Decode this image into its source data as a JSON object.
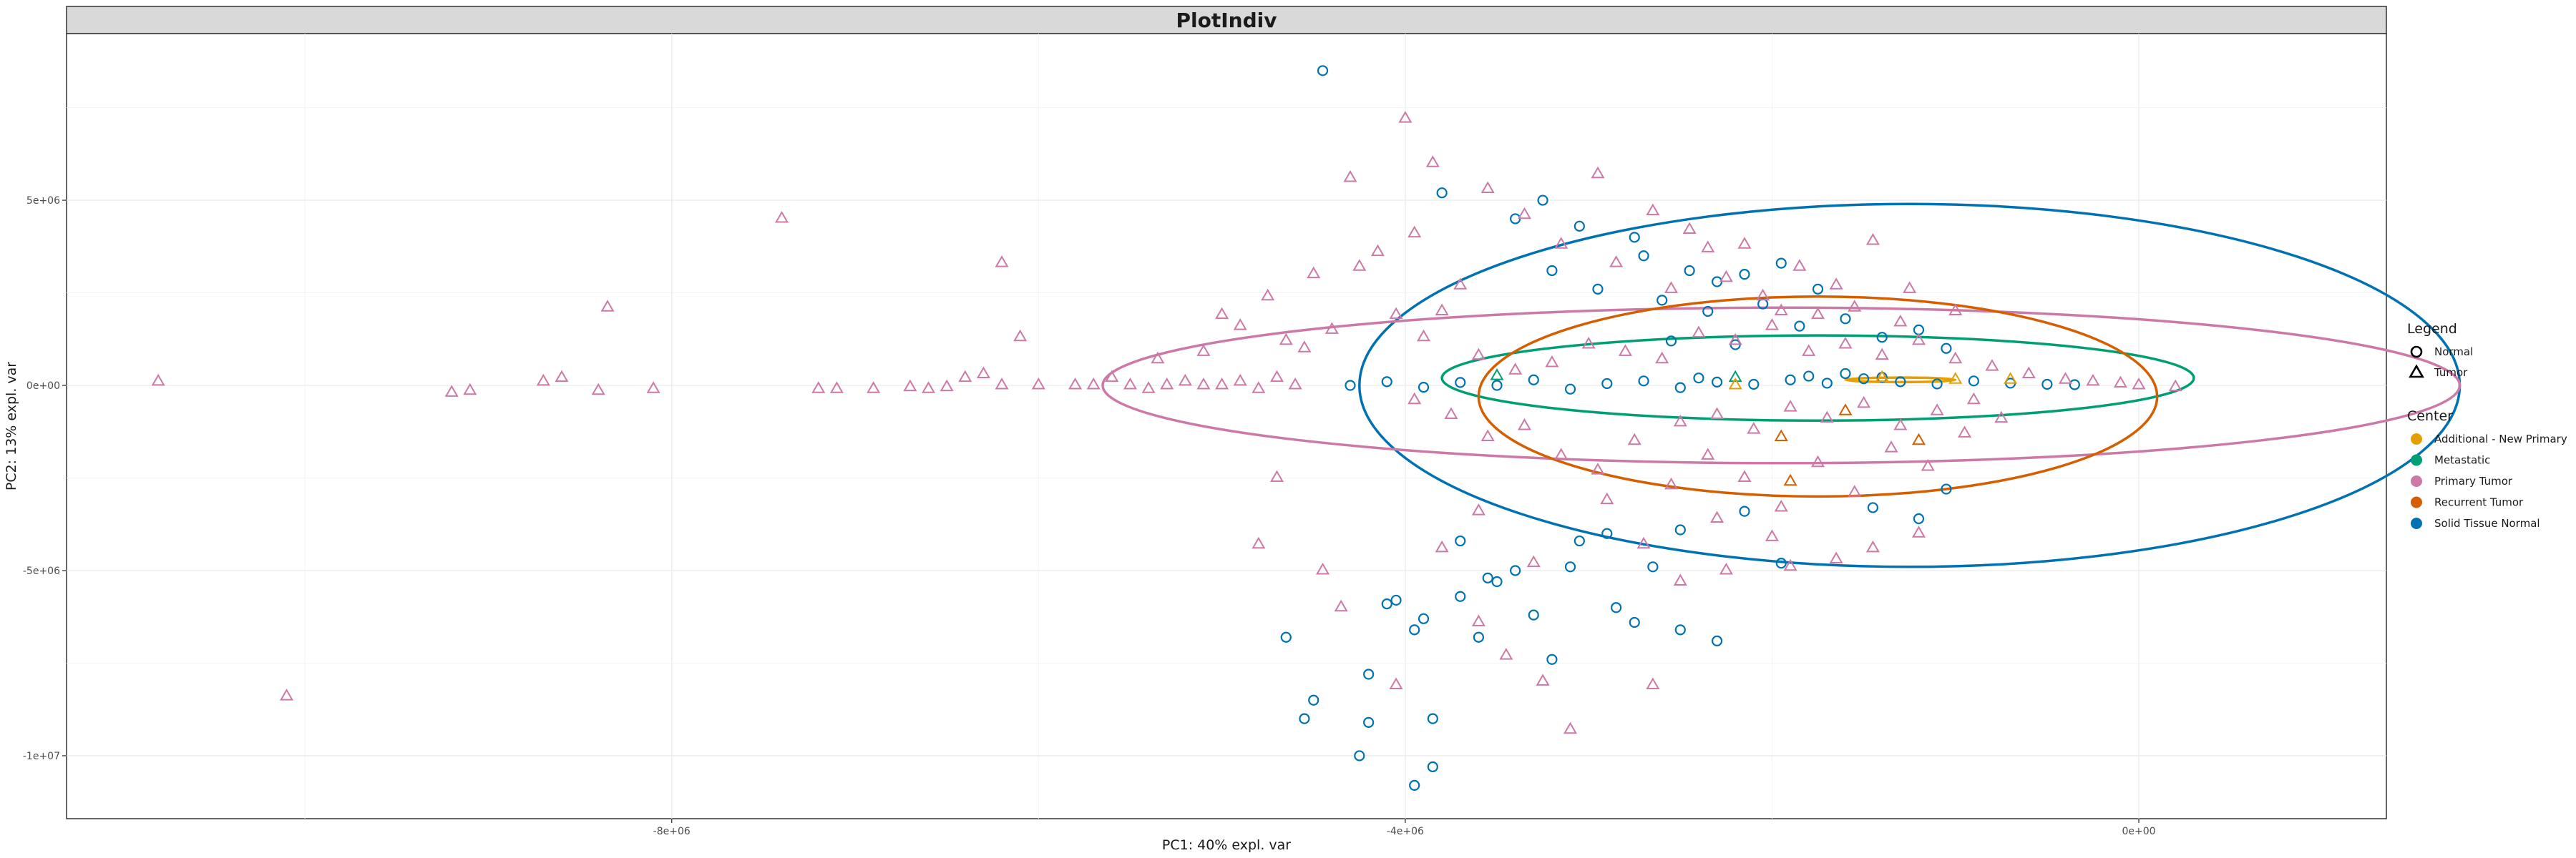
{
  "chart_data": {
    "type": "scatter",
    "title": "PlotIndiv",
    "xlabel": "PC1: 40% expl. var",
    "ylabel": "PC2: 13% expl. var",
    "xlim": [
      -11300000,
      1350000
    ],
    "ylim": [
      -11700000,
      9500000
    ],
    "x_ticks": [
      {
        "value": -8000000,
        "label": "-8e+06"
      },
      {
        "value": -4000000,
        "label": "-4e+06"
      },
      {
        "value": 0,
        "label": "0e+00"
      }
    ],
    "y_ticks": [
      {
        "value": 5000000,
        "label": "5e+06"
      },
      {
        "value": 0,
        "label": "0e+00"
      },
      {
        "value": -5000000,
        "label": "-5e+06"
      },
      {
        "value": -10000000,
        "label": "-1e+07"
      }
    ],
    "grid": true,
    "legend_placement": "right",
    "legend": {
      "shape_title": "Legend",
      "shape_entries": [
        {
          "label": "Normal",
          "shape": "circle"
        },
        {
          "label": "Tumor",
          "shape": "triangle"
        }
      ],
      "color_title": "Center",
      "color_entries": [
        {
          "label": "Additional - New Primary",
          "color": "#E69F00"
        },
        {
          "label": "Metastatic",
          "color": "#009E73"
        },
        {
          "label": "Primary Tumor",
          "color": "#CC79A7"
        },
        {
          "label": "Recurrent Tumor",
          "color": "#D55E00"
        },
        {
          "label": "Solid Tissue Normal",
          "color": "#0072B2"
        }
      ]
    },
    "ellipses": [
      {
        "group": "Solid Tissue Normal",
        "color": "#0072B2",
        "cx": -1250000,
        "cy": 0,
        "rx": 3000000,
        "ry": 4900000
      },
      {
        "group": "Primary Tumor",
        "color": "#CC79A7",
        "cx": -1950000,
        "cy": 0,
        "rx": 3700000,
        "ry": 2100000
      },
      {
        "group": "Metastatic",
        "color": "#009E73",
        "cx": -1750000,
        "cy": 200000,
        "rx": 2050000,
        "ry": 1150000
      },
      {
        "group": "Recurrent Tumor",
        "color": "#D55E00",
        "cx": -1750000,
        "cy": -300000,
        "rx": 1850000,
        "ry": 2700000
      },
      {
        "group": "Additional - New Primary",
        "color": "#E69F00",
        "cx": -1300000,
        "cy": 150000,
        "rx": 300000,
        "ry": 60000
      }
    ],
    "series": [
      {
        "name": "Solid Tissue Normal",
        "shape": "circle",
        "color": "#0072B2",
        "points": [
          [
            -4450000,
            8500000
          ],
          [
            -3800000,
            5200000
          ],
          [
            -3400000,
            4500000
          ],
          [
            -3250000,
            5000000
          ],
          [
            -3050000,
            4300000
          ],
          [
            -2750000,
            4000000
          ],
          [
            -2700000,
            3500000
          ],
          [
            -2450000,
            3100000
          ],
          [
            -2300000,
            2800000
          ],
          [
            -2150000,
            3000000
          ],
          [
            -1950000,
            3300000
          ],
          [
            -1750000,
            2600000
          ],
          [
            -3200000,
            3100000
          ],
          [
            -2950000,
            2600000
          ],
          [
            -2600000,
            2300000
          ],
          [
            -2350000,
            2000000
          ],
          [
            -2050000,
            2200000
          ],
          [
            -1850000,
            1600000
          ],
          [
            -1600000,
            1800000
          ],
          [
            -1400000,
            1300000
          ],
          [
            -1200000,
            1500000
          ],
          [
            -1050000,
            1000000
          ],
          [
            -2550000,
            1200000
          ],
          [
            -2200000,
            1100000
          ],
          [
            -4300000,
            0
          ],
          [
            -4100000,
            100000
          ],
          [
            -3900000,
            -50000
          ],
          [
            -3700000,
            80000
          ],
          [
            -3500000,
            0
          ],
          [
            -3300000,
            150000
          ],
          [
            -3100000,
            -100000
          ],
          [
            -2900000,
            50000
          ],
          [
            -2700000,
            120000
          ],
          [
            -2500000,
            -60000
          ],
          [
            -2300000,
            90000
          ],
          [
            -2100000,
            30000
          ],
          [
            -1900000,
            150000
          ],
          [
            -1700000,
            60000
          ],
          [
            -1500000,
            180000
          ],
          [
            -1300000,
            100000
          ],
          [
            -1100000,
            40000
          ],
          [
            -900000,
            120000
          ],
          [
            -700000,
            60000
          ],
          [
            -500000,
            30000
          ],
          [
            -350000,
            20000
          ],
          [
            -1800000,
            250000
          ],
          [
            -1600000,
            320000
          ],
          [
            -1400000,
            220000
          ],
          [
            -2400000,
            200000
          ],
          [
            -3100000,
            -4900000
          ],
          [
            -3500000,
            -5300000
          ],
          [
            -3700000,
            -5700000
          ],
          [
            -4100000,
            -5900000
          ],
          [
            -3900000,
            -6300000
          ],
          [
            -3600000,
            -6800000
          ],
          [
            -3200000,
            -7400000
          ],
          [
            -4200000,
            -7800000
          ],
          [
            -3950000,
            -6600000
          ],
          [
            -4500000,
            -8500000
          ],
          [
            -4550000,
            -9000000
          ],
          [
            -4200000,
            -9100000
          ],
          [
            -3850000,
            -9000000
          ],
          [
            -4250000,
            -10000000
          ],
          [
            -3850000,
            -10300000
          ],
          [
            -3950000,
            -10800000
          ],
          [
            -4650000,
            -6800000
          ],
          [
            -4050000,
            -5800000
          ],
          [
            -3550000,
            -5200000
          ],
          [
            -2850000,
            -6000000
          ],
          [
            -2750000,
            -6400000
          ],
          [
            -3300000,
            -6200000
          ],
          [
            -3050000,
            -4200000
          ],
          [
            -2650000,
            -4900000
          ],
          [
            -1950000,
            -4800000
          ],
          [
            -1450000,
            -3300000
          ],
          [
            -1200000,
            -3600000
          ],
          [
            -1050000,
            -2800000
          ],
          [
            -2150000,
            -3400000
          ],
          [
            -2500000,
            -3900000
          ],
          [
            -3400000,
            -5000000
          ],
          [
            -2900000,
            -4000000
          ],
          [
            -2500000,
            -6600000
          ],
          [
            -2300000,
            -6900000
          ],
          [
            -3700000,
            -4200000
          ]
        ]
      },
      {
        "name": "Primary Tumor",
        "shape": "triangle",
        "color": "#CC79A7",
        "points": [
          [
            -10800000,
            100000
          ],
          [
            -10100000,
            -8400000
          ],
          [
            -9200000,
            -200000
          ],
          [
            -9100000,
            -150000
          ],
          [
            -8700000,
            100000
          ],
          [
            -8600000,
            200000
          ],
          [
            -8400000,
            -150000
          ],
          [
            -8350000,
            2100000
          ],
          [
            -8100000,
            -100000
          ],
          [
            -7400000,
            4500000
          ],
          [
            -7200000,
            -100000
          ],
          [
            -7100000,
            -100000
          ],
          [
            -6900000,
            -100000
          ],
          [
            -6700000,
            -50000
          ],
          [
            -6600000,
            -100000
          ],
          [
            -6500000,
            -50000
          ],
          [
            -6400000,
            200000
          ],
          [
            -6300000,
            300000
          ],
          [
            -6200000,
            0
          ],
          [
            -6100000,
            1300000
          ],
          [
            -6000000,
            0
          ],
          [
            -6200000,
            3300000
          ],
          [
            -5800000,
            0
          ],
          [
            -5700000,
            0
          ],
          [
            -5600000,
            200000
          ],
          [
            -5500000,
            0
          ],
          [
            -5400000,
            -100000
          ],
          [
            -5300000,
            0
          ],
          [
            -5200000,
            100000
          ],
          [
            -5100000,
            0
          ],
          [
            -5000000,
            0
          ],
          [
            -4900000,
            100000
          ],
          [
            -4800000,
            -100000
          ],
          [
            -4700000,
            200000
          ],
          [
            -4600000,
            0
          ],
          [
            -5350000,
            700000
          ],
          [
            -5100000,
            900000
          ],
          [
            -5000000,
            1900000
          ],
          [
            -4900000,
            1600000
          ],
          [
            -4750000,
            2400000
          ],
          [
            -4650000,
            1200000
          ],
          [
            -4550000,
            1000000
          ],
          [
            -4500000,
            3000000
          ],
          [
            -4400000,
            1500000
          ],
          [
            -4250000,
            3200000
          ],
          [
            -4150000,
            3600000
          ],
          [
            -4050000,
            1900000
          ],
          [
            -3950000,
            4100000
          ],
          [
            -3900000,
            1300000
          ],
          [
            -3800000,
            2000000
          ],
          [
            -3700000,
            2700000
          ],
          [
            -4300000,
            5600000
          ],
          [
            -4000000,
            7200000
          ],
          [
            -3850000,
            6000000
          ],
          [
            -3550000,
            5300000
          ],
          [
            -3350000,
            4600000
          ],
          [
            -3150000,
            3800000
          ],
          [
            -2950000,
            5700000
          ],
          [
            -2850000,
            3300000
          ],
          [
            -2650000,
            4700000
          ],
          [
            -2550000,
            2600000
          ],
          [
            -2450000,
            4200000
          ],
          [
            -2350000,
            3700000
          ],
          [
            -2250000,
            2900000
          ],
          [
            -2150000,
            3800000
          ],
          [
            -2050000,
            2400000
          ],
          [
            -1850000,
            3200000
          ],
          [
            -1650000,
            2700000
          ],
          [
            -1450000,
            3900000
          ],
          [
            -1250000,
            2600000
          ],
          [
            -3950000,
            -400000
          ],
          [
            -3750000,
            -800000
          ],
          [
            -3550000,
            -1400000
          ],
          [
            -3350000,
            -1100000
          ],
          [
            -3150000,
            -1900000
          ],
          [
            -2950000,
            -2300000
          ],
          [
            -2750000,
            -1500000
          ],
          [
            -2550000,
            -2700000
          ],
          [
            -2350000,
            -1900000
          ],
          [
            -2150000,
            -2500000
          ],
          [
            -1950000,
            -3300000
          ],
          [
            -1750000,
            -2100000
          ],
          [
            -1550000,
            -2900000
          ],
          [
            -1350000,
            -1700000
          ],
          [
            -1150000,
            -2200000
          ],
          [
            -950000,
            -1300000
          ],
          [
            -750000,
            -900000
          ],
          [
            -4700000,
            -2500000
          ],
          [
            -4800000,
            -4300000
          ],
          [
            -4450000,
            -5000000
          ],
          [
            -4350000,
            -6000000
          ],
          [
            -4050000,
            -8100000
          ],
          [
            -3600000,
            -6400000
          ],
          [
            -3450000,
            -7300000
          ],
          [
            -3250000,
            -8000000
          ],
          [
            -3100000,
            -9300000
          ],
          [
            -2650000,
            -8100000
          ],
          [
            -2500000,
            -5300000
          ],
          [
            -2250000,
            -5000000
          ],
          [
            -1900000,
            -4900000
          ],
          [
            -1650000,
            -4700000
          ],
          [
            -1450000,
            -4400000
          ],
          [
            -1200000,
            -4000000
          ],
          [
            -3600000,
            -3400000
          ],
          [
            -3300000,
            -4800000
          ],
          [
            -2900000,
            -3100000
          ],
          [
            -2700000,
            -4300000
          ],
          [
            -2300000,
            -3600000
          ],
          [
            -2000000,
            -4100000
          ],
          [
            -3800000,
            -4400000
          ],
          [
            -2400000,
            1400000
          ],
          [
            -2200000,
            1200000
          ],
          [
            -2000000,
            1600000
          ],
          [
            -1800000,
            900000
          ],
          [
            -1600000,
            1100000
          ],
          [
            -1400000,
            800000
          ],
          [
            -1200000,
            1200000
          ],
          [
            -1000000,
            700000
          ],
          [
            -800000,
            500000
          ],
          [
            -600000,
            300000
          ],
          [
            -2600000,
            700000
          ],
          [
            -2800000,
            900000
          ],
          [
            -3000000,
            1100000
          ],
          [
            -3200000,
            600000
          ],
          [
            -3400000,
            400000
          ],
          [
            -3600000,
            800000
          ],
          [
            -1900000,
            -600000
          ],
          [
            -1700000,
            -900000
          ],
          [
            -1500000,
            -500000
          ],
          [
            -1300000,
            -1100000
          ],
          [
            -1100000,
            -700000
          ],
          [
            -900000,
            -400000
          ],
          [
            -2100000,
            -1200000
          ],
          [
            -2300000,
            -800000
          ],
          [
            -2500000,
            -1000000
          ],
          [
            -400000,
            150000
          ],
          [
            -250000,
            100000
          ],
          [
            -100000,
            50000
          ],
          [
            0,
            0
          ],
          [
            200000,
            -50000
          ],
          [
            -1000000,
            2000000
          ],
          [
            -1300000,
            1700000
          ],
          [
            -1550000,
            2100000
          ],
          [
            -1750000,
            1900000
          ],
          [
            -1950000,
            2000000
          ]
        ]
      },
      {
        "name": "Metastatic",
        "shape": "triangle",
        "color": "#009E73",
        "points": [
          [
            -3500000,
            250000
          ],
          [
            -2200000,
            200000
          ]
        ]
      },
      {
        "name": "Recurrent Tumor",
        "shape": "triangle",
        "color": "#D55E00",
        "points": [
          [
            -1950000,
            -1400000
          ],
          [
            -1600000,
            -700000
          ],
          [
            -1200000,
            -1500000
          ],
          [
            -1900000,
            -2600000
          ]
        ]
      },
      {
        "name": "Additional - New Primary",
        "shape": "triangle",
        "color": "#E69F00",
        "points": [
          [
            -1000000,
            150000
          ],
          [
            -1400000,
            200000
          ],
          [
            -700000,
            150000
          ],
          [
            -2200000,
            0
          ]
        ]
      }
    ]
  }
}
